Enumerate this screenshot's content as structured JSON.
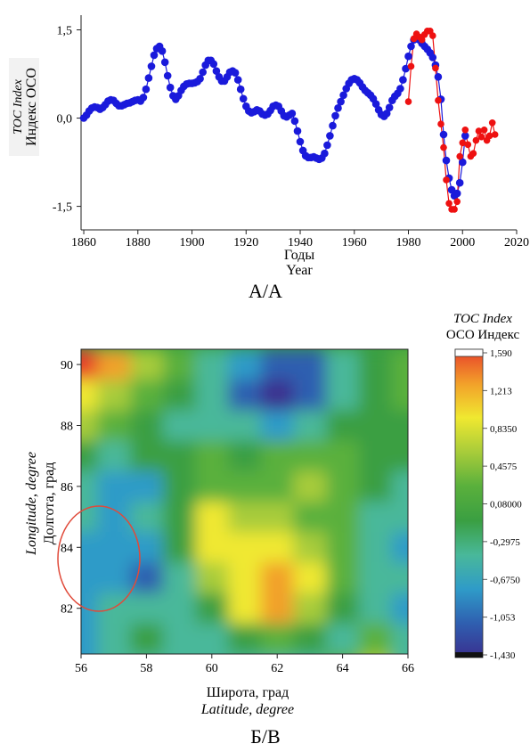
{
  "chart_data": [
    {
      "type": "scatter",
      "panel_label": "А/А",
      "ylabel_en": "TOC Index",
      "ylabel_ru": "Индекс ОСО",
      "xlabel_ru": "Годы",
      "xlabel_en": "Year",
      "xlim": [
        1859,
        2020
      ],
      "ylim": [
        -1.9,
        1.75
      ],
      "x_ticks": [
        "1860",
        "1880",
        "1900",
        "1920",
        "1940",
        "1960",
        "1980",
        "2000",
        "2020"
      ],
      "y_ticks": [
        "1,5",
        "0,0",
        "-1,5"
      ],
      "colors": {
        "blue": "#1a1adb",
        "red": "#ee1111"
      },
      "series": [
        {
          "color": "blue",
          "points": [
            [
              1860,
              0.0
            ],
            [
              1861,
              0.05
            ],
            [
              1862,
              0.12
            ],
            [
              1863,
              0.17
            ],
            [
              1864,
              0.19
            ],
            [
              1865,
              0.18
            ],
            [
              1866,
              0.15
            ],
            [
              1867,
              0.18
            ],
            [
              1868,
              0.23
            ],
            [
              1869,
              0.29
            ],
            [
              1870,
              0.31
            ],
            [
              1871,
              0.3
            ],
            [
              1872,
              0.25
            ],
            [
              1873,
              0.21
            ],
            [
              1874,
              0.21
            ],
            [
              1875,
              0.23
            ],
            [
              1876,
              0.25
            ],
            [
              1877,
              0.26
            ],
            [
              1878,
              0.28
            ],
            [
              1879,
              0.3
            ],
            [
              1880,
              0.31
            ],
            [
              1881,
              0.29
            ],
            [
              1882,
              0.35
            ],
            [
              1883,
              0.49
            ],
            [
              1884,
              0.68
            ],
            [
              1885,
              0.88
            ],
            [
              1886,
              1.07
            ],
            [
              1887,
              1.18
            ],
            [
              1888,
              1.22
            ],
            [
              1889,
              1.14
            ],
            [
              1890,
              0.95
            ],
            [
              1891,
              0.72
            ],
            [
              1892,
              0.52
            ],
            [
              1893,
              0.38
            ],
            [
              1894,
              0.32
            ],
            [
              1895,
              0.38
            ],
            [
              1896,
              0.47
            ],
            [
              1897,
              0.54
            ],
            [
              1898,
              0.58
            ],
            [
              1899,
              0.59
            ],
            [
              1900,
              0.59
            ],
            [
              1901,
              0.6
            ],
            [
              1902,
              0.62
            ],
            [
              1903,
              0.67
            ],
            [
              1904,
              0.78
            ],
            [
              1905,
              0.9
            ],
            [
              1906,
              0.98
            ],
            [
              1907,
              0.98
            ],
            [
              1908,
              0.92
            ],
            [
              1909,
              0.8
            ],
            [
              1910,
              0.7
            ],
            [
              1911,
              0.63
            ],
            [
              1912,
              0.63
            ],
            [
              1913,
              0.7
            ],
            [
              1914,
              0.78
            ],
            [
              1915,
              0.8
            ],
            [
              1916,
              0.77
            ],
            [
              1917,
              0.65
            ],
            [
              1918,
              0.49
            ],
            [
              1919,
              0.33
            ],
            [
              1920,
              0.2
            ],
            [
              1921,
              0.12
            ],
            [
              1922,
              0.09
            ],
            [
              1923,
              0.11
            ],
            [
              1924,
              0.14
            ],
            [
              1925,
              0.12
            ],
            [
              1926,
              0.07
            ],
            [
              1927,
              0.05
            ],
            [
              1928,
              0.07
            ],
            [
              1929,
              0.13
            ],
            [
              1930,
              0.2
            ],
            [
              1931,
              0.22
            ],
            [
              1932,
              0.2
            ],
            [
              1933,
              0.12
            ],
            [
              1934,
              0.04
            ],
            [
              1935,
              0.02
            ],
            [
              1936,
              0.05
            ],
            [
              1937,
              0.08
            ],
            [
              1938,
              -0.05
            ],
            [
              1939,
              -0.22
            ],
            [
              1940,
              -0.4
            ],
            [
              1941,
              -0.55
            ],
            [
              1942,
              -0.64
            ],
            [
              1943,
              -0.67
            ],
            [
              1944,
              -0.67
            ],
            [
              1945,
              -0.66
            ],
            [
              1946,
              -0.68
            ],
            [
              1947,
              -0.7
            ],
            [
              1948,
              -0.68
            ],
            [
              1949,
              -0.6
            ],
            [
              1950,
              -0.46
            ],
            [
              1951,
              -0.3
            ],
            [
              1952,
              -0.13
            ],
            [
              1953,
              0.04
            ],
            [
              1954,
              0.17
            ],
            [
              1955,
              0.28
            ],
            [
              1956,
              0.39
            ],
            [
              1957,
              0.5
            ],
            [
              1958,
              0.59
            ],
            [
              1959,
              0.65
            ],
            [
              1960,
              0.67
            ],
            [
              1961,
              0.65
            ],
            [
              1962,
              0.6
            ],
            [
              1963,
              0.53
            ],
            [
              1964,
              0.47
            ],
            [
              1965,
              0.43
            ],
            [
              1966,
              0.39
            ],
            [
              1967,
              0.33
            ],
            [
              1968,
              0.24
            ],
            [
              1969,
              0.14
            ],
            [
              1970,
              0.06
            ],
            [
              1971,
              0.03
            ],
            [
              1972,
              0.08
            ],
            [
              1973,
              0.18
            ],
            [
              1974,
              0.3
            ],
            [
              1975,
              0.37
            ],
            [
              1976,
              0.42
            ],
            [
              1977,
              0.5
            ],
            [
              1978,
              0.65
            ],
            [
              1979,
              0.84
            ],
            [
              1980,
              1.05
            ],
            [
              1981,
              1.22
            ],
            [
              1982,
              1.33
            ],
            [
              1983,
              1.36
            ],
            [
              1984,
              1.33
            ],
            [
              1985,
              1.27
            ],
            [
              1986,
              1.22
            ],
            [
              1987,
              1.17
            ],
            [
              1988,
              1.11
            ],
            [
              1989,
              1.03
            ],
            [
              1990,
              0.9
            ],
            [
              1991,
              0.7
            ],
            [
              1992,
              0.32
            ],
            [
              1993,
              -0.28
            ],
            [
              1994,
              -0.72
            ],
            [
              1995,
              -1.02
            ],
            [
              1996,
              -1.22
            ],
            [
              1997,
              -1.32
            ],
            [
              1998,
              -1.28
            ],
            [
              1999,
              -1.1
            ],
            [
              2000,
              -0.75
            ],
            [
              2001,
              -0.3
            ]
          ]
        },
        {
          "color": "red",
          "points": [
            [
              1980,
              0.28
            ],
            [
              1981,
              0.88
            ],
            [
              1982,
              1.35
            ],
            [
              1983,
              1.43
            ],
            [
              1984,
              1.38
            ],
            [
              1985,
              1.33
            ],
            [
              1986,
              1.42
            ],
            [
              1987,
              1.48
            ],
            [
              1988,
              1.48
            ],
            [
              1989,
              1.4
            ],
            [
              1990,
              0.85
            ],
            [
              1991,
              0.3
            ],
            [
              1992,
              -0.1
            ],
            [
              1993,
              -0.5
            ],
            [
              1994,
              -1.05
            ],
            [
              1995,
              -1.45
            ],
            [
              1996,
              -1.55
            ],
            [
              1997,
              -1.55
            ],
            [
              1998,
              -1.42
            ],
            [
              1999,
              -0.65
            ],
            [
              2000,
              -0.42
            ],
            [
              2001,
              -0.2
            ],
            [
              2002,
              -0.45
            ],
            [
              2003,
              -0.65
            ],
            [
              2004,
              -0.6
            ],
            [
              2005,
              -0.38
            ],
            [
              2006,
              -0.22
            ],
            [
              2007,
              -0.32
            ],
            [
              2008,
              -0.2
            ],
            [
              2009,
              -0.38
            ],
            [
              2010,
              -0.3
            ],
            [
              2011,
              -0.08
            ],
            [
              2012,
              -0.28
            ]
          ]
        }
      ]
    },
    {
      "type": "heatmap",
      "panel_label": "Б/В",
      "ylabel_en": "Longitude, degree",
      "ylabel_ru": "Долгота, град",
      "xlabel_ru": "Широта, град",
      "xlabel_en": "Latitude, degree",
      "xlim": [
        56,
        66
      ],
      "ylim": [
        80.5,
        90.5
      ],
      "x_ticks": [
        "56",
        "58",
        "60",
        "62",
        "64",
        "66"
      ],
      "y_ticks": [
        "82",
        "84",
        "86",
        "88",
        "90"
      ],
      "colorbar": {
        "title_en": "TOC Index",
        "title_ru": "ОСО Индекс",
        "labels": [
          "1,590",
          "1,213",
          "0,8350",
          "0,4575",
          "0,08000",
          "-0,2975",
          "-0,6750",
          "-1,053",
          "-1,430"
        ],
        "values": [
          1.59,
          1.213,
          0.835,
          0.4575,
          0.08,
          -0.2975,
          -0.675,
          -1.053,
          -1.43
        ],
        "colors": [
          "#3a2f8f",
          "#2f5fb0",
          "#2f9bc8",
          "#49b89a",
          "#3a9f42",
          "#5ab03c",
          "#a8cc3a",
          "#f0e830",
          "#f2a02a",
          "#e8402a"
        ]
      },
      "grid_x": [
        56,
        57,
        58,
        59,
        60,
        61,
        62,
        63,
        64,
        65,
        66
      ],
      "grid_y": [
        90.5,
        89.5,
        88.5,
        87.5,
        86.5,
        85.5,
        84.5,
        83.5,
        82.5,
        81.5,
        80.5
      ],
      "values": [
        [
          1.45,
          1.25,
          0.45,
          0.1,
          -0.3,
          -0.6,
          -1.1,
          -0.9,
          -0.3,
          0.0,
          0.3
        ],
        [
          0.9,
          0.4,
          0.1,
          -0.2,
          -0.5,
          -1.0,
          -1.4,
          -1.1,
          -0.5,
          -0.1,
          0.15
        ],
        [
          0.5,
          0.1,
          -0.1,
          -0.4,
          -0.4,
          -0.5,
          -0.6,
          -0.4,
          -0.1,
          0.0,
          -0.2
        ],
        [
          0.0,
          -0.3,
          -0.2,
          0.05,
          0.15,
          0.05,
          0.1,
          0.1,
          0.2,
          0.05,
          -0.1
        ],
        [
          -0.3,
          -0.55,
          -0.75,
          -0.2,
          0.1,
          0.25,
          0.3,
          0.55,
          0.2,
          -0.2,
          -0.35
        ],
        [
          -0.4,
          -0.6,
          -0.45,
          -0.1,
          0.75,
          0.5,
          0.55,
          0.3,
          0.1,
          -0.45,
          -0.5
        ],
        [
          -0.65,
          -0.6,
          -0.7,
          -0.2,
          0.7,
          0.95,
          0.8,
          0.55,
          0.35,
          -0.3,
          -0.6
        ],
        [
          -0.6,
          -0.8,
          -0.95,
          -0.3,
          0.55,
          0.85,
          1.0,
          0.8,
          0.3,
          -0.3,
          -0.5
        ],
        [
          -0.8,
          -0.45,
          -0.3,
          -0.4,
          -0.2,
          0.7,
          1.15,
          0.65,
          0.05,
          -0.45,
          -0.55
        ],
        [
          -0.7,
          -0.5,
          -0.2,
          -0.35,
          -0.5,
          -0.2,
          0.1,
          -0.1,
          -0.25,
          0.2,
          -0.5
        ],
        [
          -0.6,
          -0.4,
          -0.5,
          -0.35,
          -0.3,
          -0.4,
          -0.3,
          -0.25,
          0.2,
          0.55,
          -0.4
        ]
      ],
      "annotation": "red ellipse around 56-57.5 latitude, 82.5-85 longitude"
    }
  ]
}
